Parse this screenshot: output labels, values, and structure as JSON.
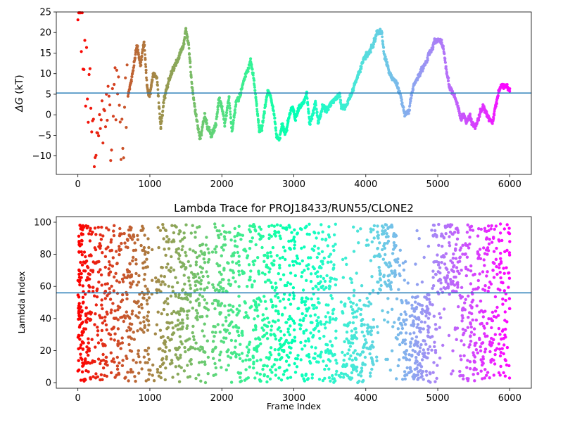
{
  "chart_data": [
    {
      "type": "scatter",
      "title": "",
      "xlabel": "",
      "ylabel": "ΔG (kT)",
      "ylabel_main": "ΔG",
      "ylabel_unit": " (kT)",
      "xlim": [
        -300,
        6300
      ],
      "ylim": [
        -14.5,
        25
      ],
      "xticks": [
        0,
        1000,
        2000,
        3000,
        4000,
        5000,
        6000
      ],
      "yticks": [
        -10,
        -5,
        0,
        5,
        10,
        15,
        20,
        25
      ],
      "hline": 5.3,
      "hline_color": "#1f77b4",
      "colormap": "rainbow",
      "grid": false,
      "keypoints": [
        [
          0,
          20
        ],
        [
          20,
          24
        ],
        [
          60,
          22
        ],
        [
          100,
          13
        ],
        [
          150,
          5
        ],
        [
          200,
          -2
        ],
        [
          250,
          -12
        ],
        [
          300,
          0
        ],
        [
          350,
          -3
        ],
        [
          400,
          2
        ],
        [
          450,
          -5
        ],
        [
          500,
          3
        ],
        [
          550,
          5
        ],
        [
          600,
          -7
        ],
        [
          650,
          0
        ],
        [
          700,
          5
        ],
        [
          760,
          10
        ],
        [
          820,
          17
        ],
        [
          870,
          12
        ],
        [
          920,
          18
        ],
        [
          960,
          7
        ],
        [
          990,
          4
        ],
        [
          1050,
          10
        ],
        [
          1100,
          9
        ],
        [
          1150,
          -3
        ],
        [
          1200,
          4
        ],
        [
          1260,
          8
        ],
        [
          1320,
          11
        ],
        [
          1380,
          13
        ],
        [
          1420,
          15
        ],
        [
          1470,
          17
        ],
        [
          1500,
          21
        ],
        [
          1540,
          17
        ],
        [
          1580,
          8
        ],
        [
          1620,
          2
        ],
        [
          1660,
          -2
        ],
        [
          1700,
          -6
        ],
        [
          1760,
          0
        ],
        [
          1800,
          -3
        ],
        [
          1860,
          -5
        ],
        [
          1920,
          -2
        ],
        [
          1960,
          4
        ],
        [
          2000,
          2
        ],
        [
          2040,
          -2
        ],
        [
          2100,
          4
        ],
        [
          2140,
          -4
        ],
        [
          2200,
          3
        ],
        [
          2260,
          5
        ],
        [
          2300,
          8
        ],
        [
          2360,
          11
        ],
        [
          2400,
          13
        ],
        [
          2440,
          9
        ],
        [
          2480,
          3
        ],
        [
          2520,
          -4
        ],
        [
          2560,
          -3
        ],
        [
          2600,
          2
        ],
        [
          2640,
          6
        ],
        [
          2680,
          4
        ],
        [
          2720,
          1
        ],
        [
          2760,
          -5
        ],
        [
          2800,
          -6
        ],
        [
          2840,
          -2
        ],
        [
          2880,
          -5
        ],
        [
          2940,
          0
        ],
        [
          2980,
          2
        ],
        [
          3020,
          -1
        ],
        [
          3080,
          2
        ],
        [
          3140,
          3
        ],
        [
          3180,
          5
        ],
        [
          3220,
          -2
        ],
        [
          3260,
          0
        ],
        [
          3300,
          3
        ],
        [
          3340,
          -2
        ],
        [
          3400,
          2
        ],
        [
          3460,
          1
        ],
        [
          3520,
          3
        ],
        [
          3580,
          4
        ],
        [
          3640,
          5
        ],
        [
          3660,
          2
        ],
        [
          3720,
          2
        ],
        [
          3800,
          5
        ],
        [
          3860,
          8
        ],
        [
          3920,
          11
        ],
        [
          3980,
          14
        ],
        [
          4040,
          15
        ],
        [
          4100,
          17
        ],
        [
          4160,
          20
        ],
        [
          4220,
          20
        ],
        [
          4260,
          14
        ],
        [
          4300,
          12
        ],
        [
          4360,
          9
        ],
        [
          4420,
          8
        ],
        [
          4480,
          5
        ],
        [
          4540,
          0
        ],
        [
          4600,
          1
        ],
        [
          4660,
          7
        ],
        [
          4720,
          9
        ],
        [
          4780,
          11
        ],
        [
          4840,
          13
        ],
        [
          4880,
          15
        ],
        [
          4920,
          16
        ],
        [
          4960,
          18
        ],
        [
          5040,
          18
        ],
        [
          5080,
          16
        ],
        [
          5120,
          11
        ],
        [
          5160,
          7
        ],
        [
          5220,
          5
        ],
        [
          5280,
          2
        ],
        [
          5320,
          -1
        ],
        [
          5360,
          0
        ],
        [
          5400,
          -2
        ],
        [
          5440,
          0
        ],
        [
          5480,
          -2
        ],
        [
          5520,
          -3
        ],
        [
          5560,
          -1
        ],
        [
          5600,
          1
        ],
        [
          5640,
          2
        ],
        [
          5680,
          0
        ],
        [
          5720,
          -1
        ],
        [
          5760,
          -2
        ],
        [
          5800,
          2
        ],
        [
          5840,
          5
        ],
        [
          5880,
          7
        ],
        [
          5920,
          7
        ],
        [
          5960,
          7
        ],
        [
          6000,
          6
        ]
      ]
    },
    {
      "type": "scatter",
      "title": "Lambda Trace for PROJ18433/RUN55/CLONE2",
      "xlabel": "Frame Index",
      "ylabel": "Lambda Index",
      "xlim": [
        -300,
        6300
      ],
      "ylim": [
        -3.5,
        103.5
      ],
      "xticks": [
        0,
        1000,
        2000,
        3000,
        4000,
        5000,
        6000
      ],
      "yticks": [
        0,
        20,
        40,
        60,
        80,
        100
      ],
      "hline": 56,
      "hline_color": "#1f77b4",
      "colormap": "rainbow",
      "grid": false,
      "x_range": [
        0,
        6000
      ],
      "y_range": [
        0,
        99
      ],
      "high_cluster_ranges": [
        [
          4150,
          4420
        ],
        [
          4980,
          5300
        ]
      ],
      "low_cluster_ranges": [
        [
          3700,
          4100
        ],
        [
          4480,
          4900
        ]
      ],
      "gap_ranges": [
        [
          1000,
          1080
        ],
        [
          1830,
          1870
        ],
        [
          3600,
          3650
        ],
        [
          4120,
          4150
        ]
      ]
    }
  ]
}
